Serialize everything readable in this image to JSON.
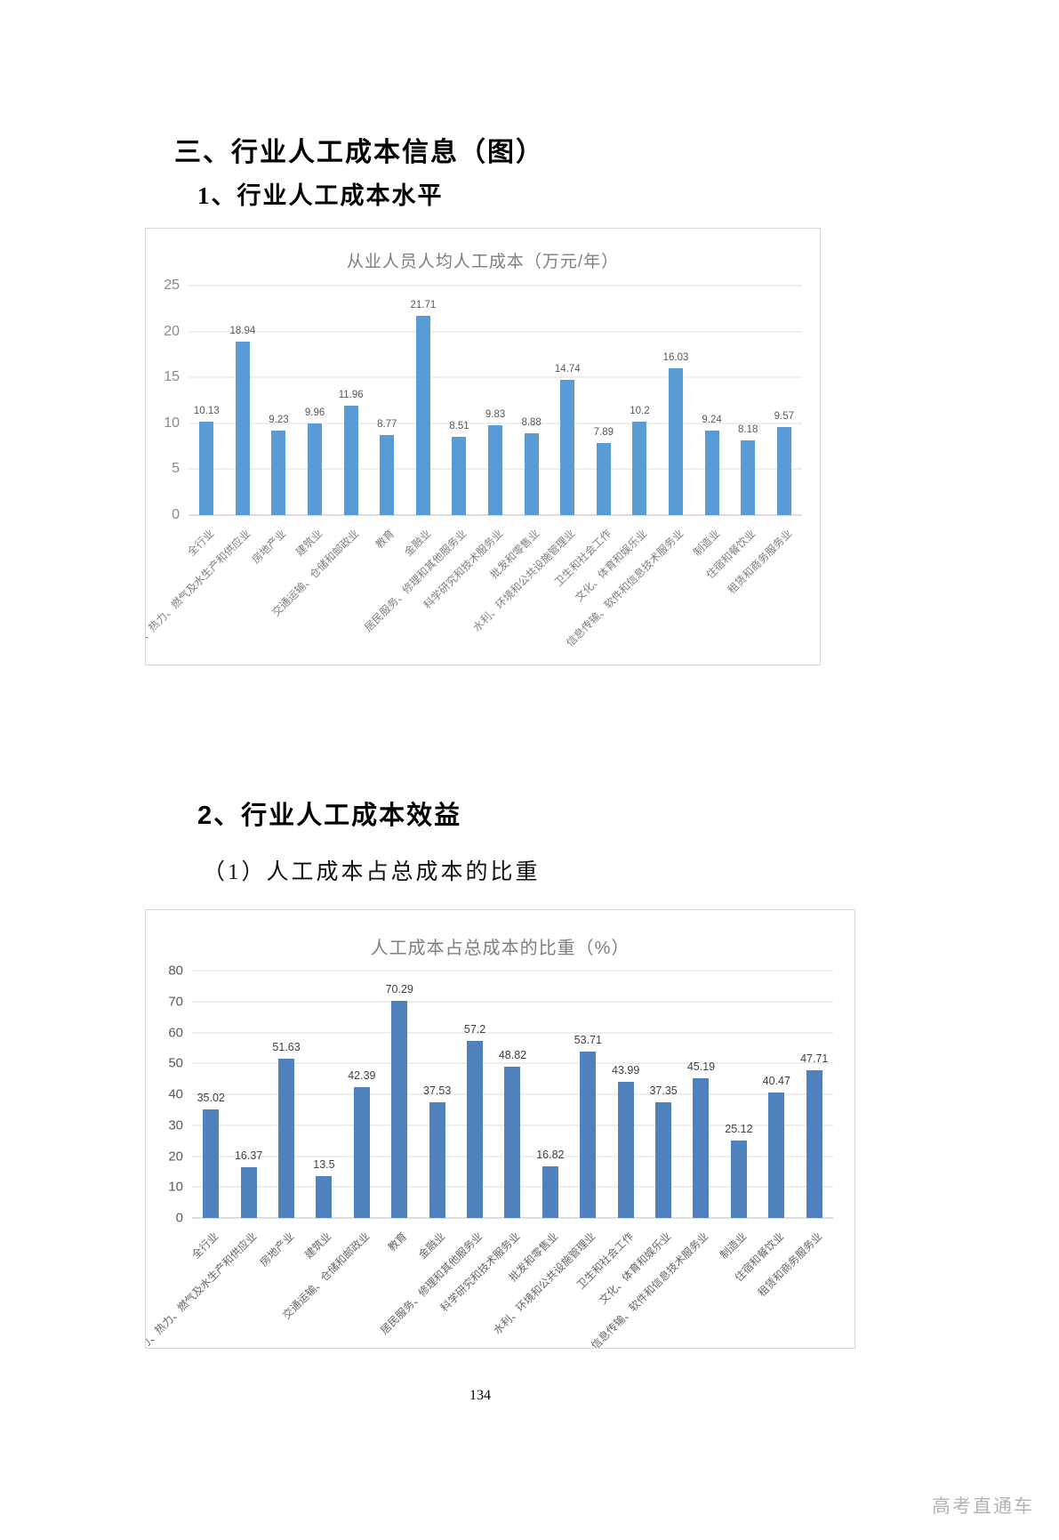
{
  "page": {
    "heading1": "三、行业人工成本信息（图）",
    "heading2": "1、行业人工成本水平",
    "heading3": "2、行业人工成本效益",
    "heading4": "（1）人工成本占总成本的比重",
    "page_number": "134",
    "watermark": "高考直通车"
  },
  "chart_data": [
    {
      "type": "bar",
      "title": "从业人员人均人工成本（万元/年）",
      "categories": [
        "全行业",
        "电力、热力、燃气及水生产和供应业",
        "房地产业",
        "建筑业",
        "交通运输、仓储和邮政业",
        "教育",
        "金融业",
        "居民服务、修理和其他服务业",
        "科学研究和技术服务业",
        "批发和零售业",
        "水利、环境和公共设施管理业",
        "卫生和社会工作",
        "文化、体育和娱乐业",
        "信息传输、软件和信息技术服务业",
        "制造业",
        "住宿和餐饮业",
        "租赁和商务服务业"
      ],
      "values": [
        10.13,
        18.94,
        9.23,
        9.96,
        11.96,
        8.77,
        21.71,
        8.51,
        9.83,
        8.88,
        14.74,
        7.89,
        10.2,
        16.03,
        9.24,
        8.18,
        9.57
      ],
      "xlabel": "",
      "ylabel": "",
      "ylim": [
        0,
        25
      ],
      "ytick_step": 5,
      "grid": true,
      "legend": "none",
      "bar_color": "#5b9bd5"
    },
    {
      "type": "bar",
      "title": "人工成本占总成本的比重（%）",
      "categories": [
        "全行业",
        "电力、热力、燃气及水生产和供应业",
        "房地产业",
        "建筑业",
        "交通运输、仓储和邮政业",
        "教育",
        "金融业",
        "居民服务、修理和其他服务业",
        "科学研究和技术服务业",
        "批发和零售业",
        "水利、环境和公共设施管理业",
        "卫生和社会工作",
        "文化、体育和娱乐业",
        "信息传输、软件和信息技术服务业",
        "制造业",
        "住宿和餐饮业",
        "租赁和商务服务业"
      ],
      "values": [
        35.02,
        16.37,
        51.63,
        13.5,
        42.39,
        70.29,
        37.53,
        57.2,
        48.82,
        16.82,
        53.71,
        43.99,
        37.35,
        45.19,
        25.12,
        40.47,
        47.71
      ],
      "xlabel": "",
      "ylabel": "",
      "ylim": [
        0,
        80
      ],
      "ytick_step": 10,
      "grid": true,
      "legend": "none",
      "bar_color": "#4f81bd"
    }
  ]
}
